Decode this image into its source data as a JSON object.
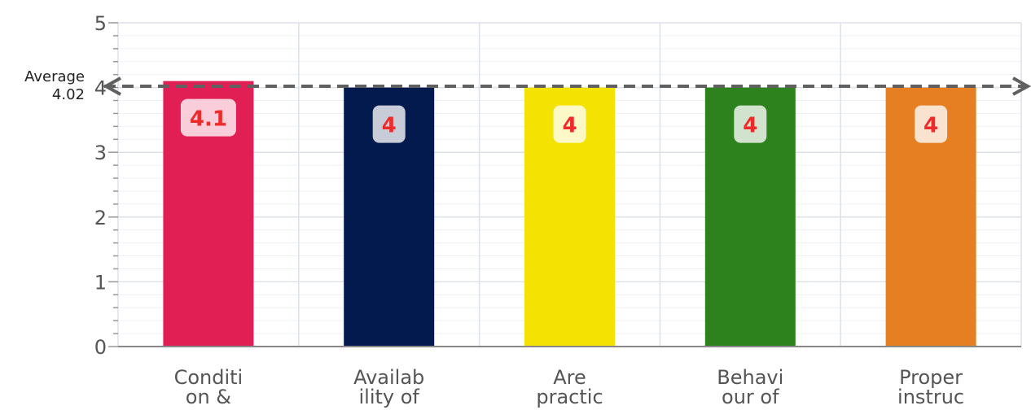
{
  "chart_data": {
    "type": "bar",
    "categories": [
      [
        "Conditi",
        "on &"
      ],
      [
        "Availab",
        "ility of"
      ],
      [
        "Are",
        "practic"
      ],
      [
        "Behavi",
        "our of"
      ],
      [
        "Proper",
        "instruc"
      ]
    ],
    "values": [
      4.1,
      4,
      4,
      4,
      4
    ],
    "data_labels": [
      "4.1",
      "4",
      "4",
      "4",
      "4"
    ],
    "colors": [
      "#e21f55",
      "#031a4f",
      "#f4e203",
      "#2d821d",
      "#e67e22"
    ],
    "ylim": [
      0,
      5
    ],
    "yticks": [
      0,
      1,
      2,
      3,
      4,
      5
    ],
    "grid": true,
    "average": {
      "value": 4.02,
      "label_line1": "Average",
      "label_line2": "4.02"
    }
  }
}
